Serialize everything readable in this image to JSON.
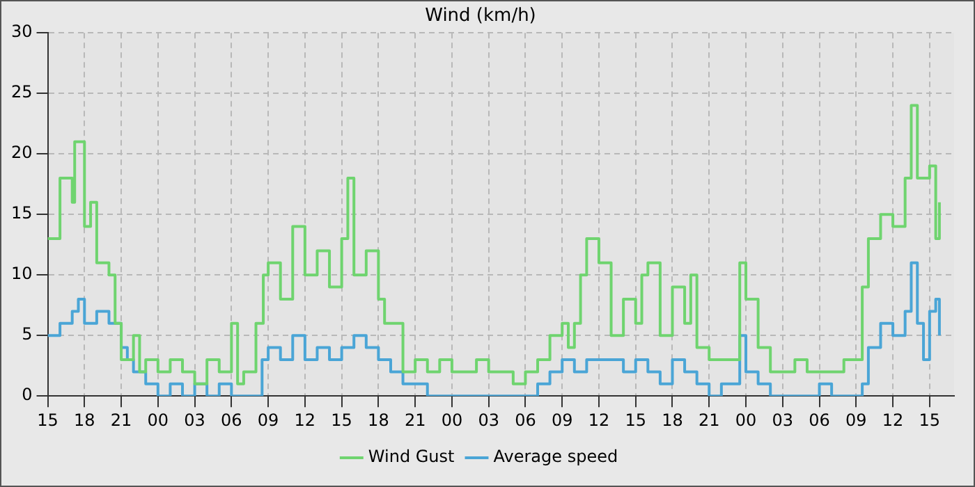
{
  "chart_data": {
    "type": "step",
    "title": "Wind (km/h)",
    "xlim": [
      "--01-01T15:00",
      "--01-04T17:00"
    ],
    "ylim": [
      0,
      30
    ],
    "yticks": [
      0,
      5,
      10,
      15,
      20,
      25,
      30
    ],
    "xticks": [
      {
        "value": "--01-01T15:00",
        "label": "15"
      },
      {
        "value": "--01-01T18:00",
        "label": "18"
      },
      {
        "value": "--01-01T21:00",
        "label": "21"
      },
      {
        "value": "--01-02T00:00",
        "label": "00"
      },
      {
        "value": "--01-02T03:00",
        "label": "03"
      },
      {
        "value": "--01-02T06:00",
        "label": "06"
      },
      {
        "value": "--01-02T09:00",
        "label": "09"
      },
      {
        "value": "--01-02T12:00",
        "label": "12"
      },
      {
        "value": "--01-02T15:00",
        "label": "15"
      },
      {
        "value": "--01-02T18:00",
        "label": "18"
      },
      {
        "value": "--01-02T21:00",
        "label": "21"
      },
      {
        "value": "--01-03T00:00",
        "label": "00"
      },
      {
        "value": "--01-03T03:00",
        "label": "03"
      },
      {
        "value": "--01-03T06:00",
        "label": "06"
      },
      {
        "value": "--01-03T09:00",
        "label": "09"
      },
      {
        "value": "--01-03T12:00",
        "label": "12"
      },
      {
        "value": "--01-03T15:00",
        "label": "15"
      },
      {
        "value": "--01-03T18:00",
        "label": "18"
      },
      {
        "value": "--01-03T21:00",
        "label": "21"
      },
      {
        "value": "--01-04T00:00",
        "label": "00"
      },
      {
        "value": "--01-04T03:00",
        "label": "03"
      },
      {
        "value": "--01-04T06:00",
        "label": "06"
      },
      {
        "value": "--01-04T09:00",
        "label": "09"
      },
      {
        "value": "--01-04T12:00",
        "label": "12"
      },
      {
        "value": "--01-04T15:00",
        "label": "15"
      }
    ],
    "grid": true,
    "legend": "bottom",
    "line_style": "solid",
    "marker": "none",
    "series": [
      {
        "name": "Wind Gust",
        "color": "#6fd46f",
        "x": [
          "--01-01T15:00",
          "--01-01T16:00",
          "--01-01T17:00",
          "--01-01T17:12",
          "--01-01T18:00",
          "--01-01T18:30",
          "--01-01T19:00",
          "--01-01T20:00",
          "--01-01T20:30",
          "--01-01T21:00",
          "--01-01T22:00",
          "--01-01T22:30",
          "--01-01T23:00",
          "--01-02T00:00",
          "--01-02T01:00",
          "--01-02T02:00",
          "--01-02T03:00",
          "--01-02T04:00",
          "--01-02T05:00",
          "--01-02T06:00",
          "--01-02T06:30",
          "--01-02T07:00",
          "--01-02T08:00",
          "--01-02T08:36",
          "--01-02T09:00",
          "--01-02T10:00",
          "--01-02T11:00",
          "--01-02T12:00",
          "--01-02T13:00",
          "--01-02T14:00",
          "--01-02T15:00",
          "--01-02T15:30",
          "--01-02T16:00",
          "--01-02T17:00",
          "--01-02T18:00",
          "--01-02T18:30",
          "--01-02T19:00",
          "--01-02T20:00",
          "--01-02T21:00",
          "--01-02T22:00",
          "--01-02T23:00",
          "--01-03T00:00",
          "--01-03T01:00",
          "--01-03T02:00",
          "--01-03T03:00",
          "--01-03T04:00",
          "--01-03T05:00",
          "--01-03T06:00",
          "--01-03T07:00",
          "--01-03T08:00",
          "--01-03T09:00",
          "--01-03T09:30",
          "--01-03T10:00",
          "--01-03T10:30",
          "--01-03T11:00",
          "--01-03T12:00",
          "--01-03T13:00",
          "--01-03T14:00",
          "--01-03T15:00",
          "--01-03T15:30",
          "--01-03T16:00",
          "--01-03T17:00",
          "--01-03T18:00",
          "--01-03T19:00",
          "--01-03T19:30",
          "--01-03T20:00",
          "--01-03T21:00",
          "--01-03T22:00",
          "--01-03T23:00",
          "--01-03T23:30",
          "--01-04T00:00",
          "--01-04T01:00",
          "--01-04T02:00",
          "--01-04T03:00",
          "--01-04T04:00",
          "--01-04T05:00",
          "--01-04T06:00",
          "--01-04T07:00",
          "--01-04T08:00",
          "--01-04T09:00",
          "--01-04T09:30",
          "--01-04T10:00",
          "--01-04T11:00",
          "--01-04T12:00",
          "--01-04T13:00",
          "--01-04T13:30",
          "--01-04T14:00",
          "--01-04T15:00",
          "--01-04T15:30",
          "--01-04T15:48"
        ],
        "values": [
          13,
          18,
          16,
          21,
          14,
          16,
          11,
          10,
          6,
          3,
          5,
          2,
          3,
          2,
          3,
          2,
          1,
          3,
          2,
          6,
          1,
          2,
          6,
          10,
          11,
          8,
          14,
          10,
          12,
          9,
          13,
          18,
          10,
          12,
          8,
          6,
          6,
          2,
          3,
          2,
          3,
          2,
          2,
          3,
          2,
          2,
          1,
          2,
          3,
          5,
          6,
          4,
          6,
          10,
          13,
          11,
          5,
          8,
          6,
          10,
          11,
          5,
          9,
          6,
          10,
          4,
          3,
          3,
          3,
          11,
          8,
          4,
          2,
          2,
          3,
          2,
          2,
          2,
          3,
          3,
          9,
          13,
          15,
          14,
          18,
          24,
          18,
          19,
          13,
          16
        ]
      },
      {
        "name": "Average speed",
        "color": "#4aa5d6",
        "x": [
          "--01-01T15:00",
          "--01-01T16:00",
          "--01-01T17:00",
          "--01-01T17:30",
          "--01-01T18:00",
          "--01-01T19:00",
          "--01-01T20:00",
          "--01-01T21:00",
          "--01-01T21:30",
          "--01-01T22:00",
          "--01-01T23:00",
          "--01-02T00:00",
          "--01-02T01:00",
          "--01-02T02:00",
          "--01-02T03:00",
          "--01-02T04:00",
          "--01-02T05:00",
          "--01-02T06:00",
          "--01-02T07:00",
          "--01-02T08:00",
          "--01-02T08:30",
          "--01-02T09:00",
          "--01-02T10:00",
          "--01-02T11:00",
          "--01-02T12:00",
          "--01-02T13:00",
          "--01-02T14:00",
          "--01-02T15:00",
          "--01-02T16:00",
          "--01-02T17:00",
          "--01-02T18:00",
          "--01-02T19:00",
          "--01-02T20:00",
          "--01-02T21:00",
          "--01-02T22:00",
          "--01-03T01:00",
          "--01-03T05:00",
          "--01-03T07:00",
          "--01-03T08:00",
          "--01-03T09:00",
          "--01-03T10:00",
          "--01-03T11:00",
          "--01-03T12:00",
          "--01-03T13:00",
          "--01-03T14:00",
          "--01-03T15:00",
          "--01-03T16:00",
          "--01-03T17:00",
          "--01-03T18:00",
          "--01-03T19:00",
          "--01-03T20:00",
          "--01-03T21:00",
          "--01-03T22:00",
          "--01-03T23:00",
          "--01-03T23:30",
          "--01-04T00:00",
          "--01-04T01:00",
          "--01-04T02:00",
          "--01-04T05:00",
          "--01-04T06:00",
          "--01-04T07:00",
          "--01-04T09:00",
          "--01-04T09:30",
          "--01-04T10:00",
          "--01-04T11:00",
          "--01-04T12:00",
          "--01-04T13:00",
          "--01-04T13:30",
          "--01-04T14:00",
          "--01-04T14:30",
          "--01-04T15:00",
          "--01-04T15:30",
          "--01-04T15:48"
        ],
        "values": [
          5,
          6,
          7,
          8,
          6,
          7,
          6,
          4,
          3,
          2,
          1,
          0,
          1,
          0,
          1,
          0,
          1,
          0,
          0,
          0,
          3,
          4,
          3,
          5,
          3,
          4,
          3,
          4,
          5,
          4,
          3,
          2,
          1,
          1,
          0,
          0,
          0,
          1,
          2,
          3,
          2,
          3,
          3,
          3,
          2,
          3,
          2,
          1,
          3,
          2,
          1,
          0,
          1,
          1,
          5,
          2,
          1,
          0,
          0,
          1,
          0,
          0,
          1,
          4,
          6,
          5,
          7,
          11,
          6,
          3,
          7,
          8,
          5
        ]
      }
    ]
  }
}
